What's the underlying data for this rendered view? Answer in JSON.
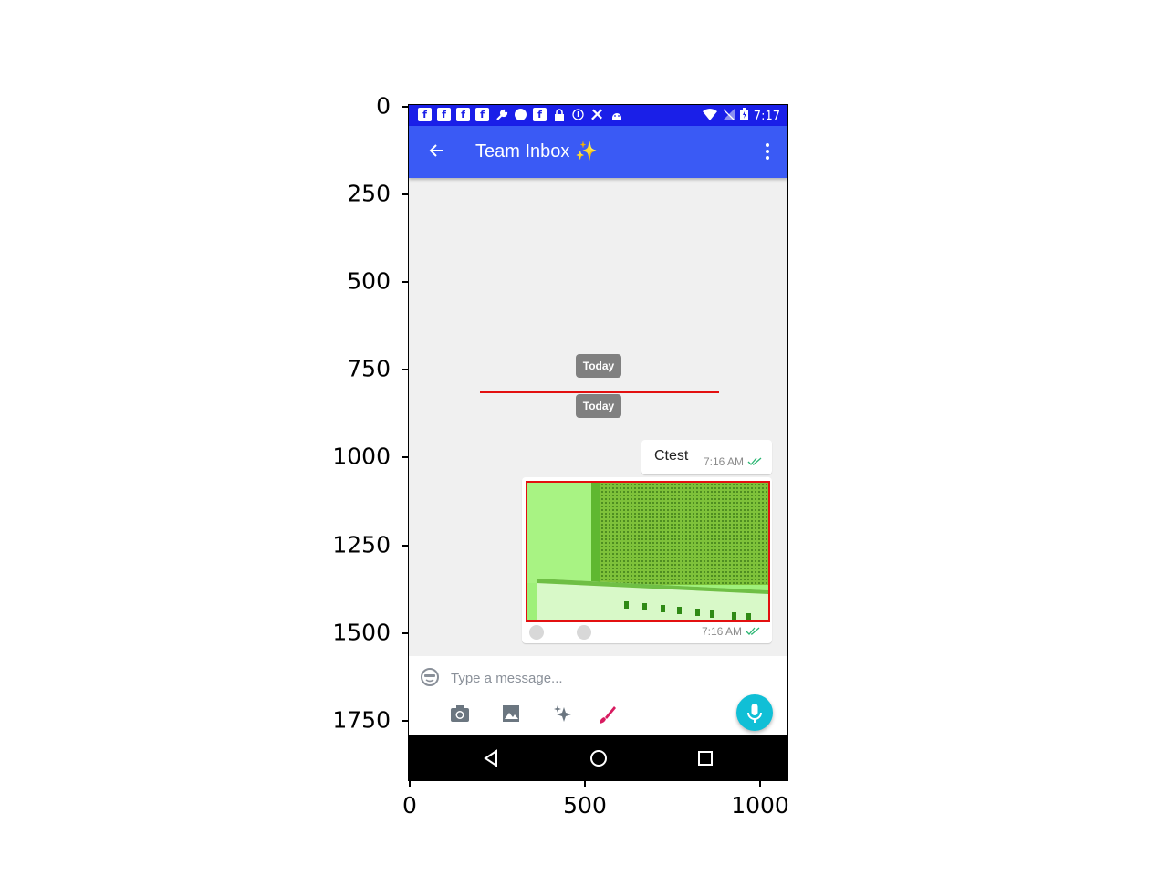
{
  "axes": {
    "y_ticks": [
      "0",
      "250",
      "500",
      "750",
      "1000",
      "1250",
      "1500",
      "1750"
    ],
    "x_ticks": [
      "0",
      "500",
      "1000"
    ]
  },
  "status_bar": {
    "time": "7:17",
    "icons": [
      "facebook-icon",
      "facebook-icon",
      "facebook-icon",
      "facebook-icon",
      "wrench-icon",
      "chat-bubble-icon",
      "facebook-icon",
      "lock-icon",
      "info-icon",
      "tools-icon",
      "android-icon",
      "wifi-icon",
      "no-signal-icon",
      "battery-icon"
    ]
  },
  "toolbar": {
    "title": "Team Inbox ✨",
    "back_icon": "arrow-left-icon",
    "menu_icon": "more-vert-icon"
  },
  "chat": {
    "date_chip_1": "Today",
    "date_chip_2": "Today",
    "messages": [
      {
        "type": "text",
        "text": "Ctest",
        "time": "7:16 AM",
        "status_icon": "double-check-icon"
      },
      {
        "type": "image",
        "time": "7:16 AM",
        "status_icon": "double-check-icon"
      }
    ]
  },
  "composer": {
    "placeholder": "Type a message...",
    "tools": [
      "camera-icon",
      "image-icon",
      "sparkle-icon",
      "brush-icon"
    ],
    "send_icon": "mic-icon"
  },
  "colors": {
    "status_bar": "#1a1fe8",
    "toolbar": "#3a5af5",
    "chat_bg": "#f0f0f0",
    "annotation_red": "#e31010",
    "mic_button": "#10bfd6",
    "read_ticks": "#2bb673",
    "brush": "#d81b60"
  }
}
